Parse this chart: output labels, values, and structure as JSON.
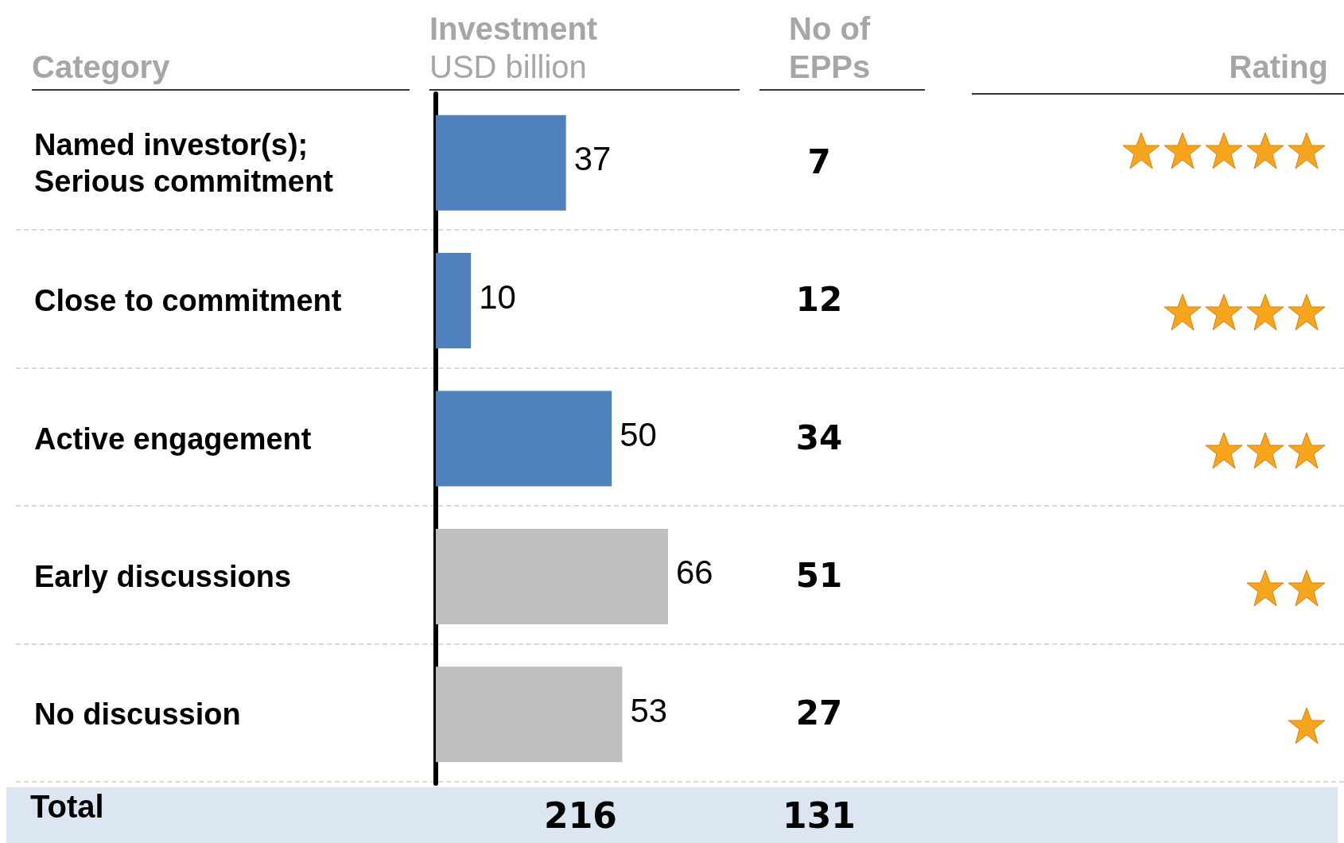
{
  "chart_data": [
    {
      "type": "bar",
      "orientation": "horizontal",
      "ylabel": "Category",
      "xlabel": "Investment\nUSD billion",
      "categories": [
        "Named investor(s); Serious commitment",
        "Close to commitment",
        "Active engagement",
        "Early discussions",
        "No discussion"
      ],
      "values": [
        37,
        10,
        50,
        66,
        53
      ],
      "colors": [
        "#4f81bd",
        "#4f81bd",
        "#4f81bd",
        "#bfbfbf",
        "#bfbfbf"
      ],
      "data_labels": true,
      "annotations": [
        "Total",
        "216"
      ]
    },
    {
      "type": "other",
      "title": "No of\nEPPs",
      "values": [
        7,
        12,
        34,
        51,
        27
      ],
      "data_labels": true,
      "annotations": [
        "131"
      ]
    },
    {
      "type": "other",
      "title": "Rating"
    }
  ]
}
